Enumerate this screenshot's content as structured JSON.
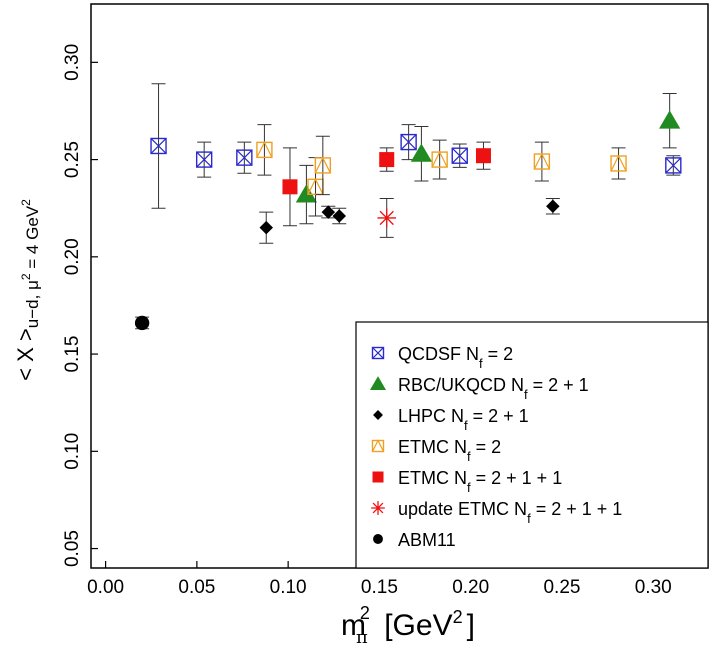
{
  "chart_data": {
    "type": "scatter",
    "title": "",
    "xlabel": "m_π² [GeV²]",
    "xlabel_parts": {
      "base": "m",
      "sub": "π",
      "sup": "2",
      "unit_open": "[GeV",
      "unit_sup": "2",
      "unit_close": "]"
    },
    "ylabel": "< X >u−d, μ² = 4 GeV²",
    "ylabel_parts": {
      "main": "< X >",
      "sub": "u−d, μ",
      "sup1": "2",
      "rest": " = 4 GeV",
      "sup2": "2"
    },
    "xlim": [
      -0.008,
      0.33
    ],
    "ylim": [
      0.04,
      0.33
    ],
    "xticks": [
      0.0,
      0.05,
      0.1,
      0.15,
      0.2,
      0.25,
      0.3
    ],
    "xtick_labels": [
      "0.00",
      "0.05",
      "0.10",
      "0.15",
      "0.20",
      "0.25",
      "0.30"
    ],
    "yticks": [
      0.05,
      0.1,
      0.15,
      0.2,
      0.25,
      0.3
    ],
    "ytick_labels": [
      "0.05",
      "0.10",
      "0.15",
      "0.20",
      "0.25",
      "0.30"
    ],
    "grid": false,
    "legend_position": "bottom-right",
    "series": [
      {
        "name": "QCDSF N_f = 2",
        "legend_parts": {
          "pre": "QCDSF N",
          "sub": "f",
          "post": " = 2"
        },
        "marker": "square-x",
        "color": "#2a2acc",
        "filled": false,
        "points": [
          {
            "x": 0.029,
            "y": 0.257,
            "err": 0.032
          },
          {
            "x": 0.054,
            "y": 0.25,
            "err": 0.009
          },
          {
            "x": 0.076,
            "y": 0.251,
            "err": 0.008
          },
          {
            "x": 0.166,
            "y": 0.259,
            "err": 0.009
          },
          {
            "x": 0.194,
            "y": 0.252,
            "err": 0.006
          },
          {
            "x": 0.311,
            "y": 0.247,
            "err": 0.005
          }
        ]
      },
      {
        "name": "RBC/UKQCD N_f = 2 + 1",
        "legend_parts": {
          "pre": "RBC/UKQCD N",
          "sub": "f",
          "post": " = 2 + 1"
        },
        "marker": "triangle",
        "color": "#218a21",
        "filled": true,
        "points": [
          {
            "x": 0.11,
            "y": 0.232,
            "err": 0.015
          },
          {
            "x": 0.173,
            "y": 0.253,
            "err": 0.014
          },
          {
            "x": 0.309,
            "y": 0.27,
            "err": 0.014
          }
        ]
      },
      {
        "name": "LHPC N_f = 2 + 1",
        "legend_parts": {
          "pre": "LHPC N",
          "sub": "f",
          "post": " = 2 + 1"
        },
        "marker": "diamond",
        "color": "#000000",
        "filled": true,
        "points": [
          {
            "x": 0.088,
            "y": 0.215,
            "err": 0.008
          },
          {
            "x": 0.122,
            "y": 0.223,
            "err": 0.003
          },
          {
            "x": 0.128,
            "y": 0.221,
            "err": 0.004
          },
          {
            "x": 0.245,
            "y": 0.226,
            "err": 0.004
          }
        ]
      },
      {
        "name": "ETMC N_f = 2",
        "legend_parts": {
          "pre": "ETMC N",
          "sub": "f",
          "post": " = 2"
        },
        "marker": "square-triangle",
        "color": "#f0a020",
        "filled": false,
        "points": [
          {
            "x": 0.087,
            "y": 0.255,
            "err": 0.013
          },
          {
            "x": 0.115,
            "y": 0.236,
            "err": 0.015
          },
          {
            "x": 0.119,
            "y": 0.247,
            "err": 0.015
          },
          {
            "x": 0.183,
            "y": 0.25,
            "err": 0.01
          },
          {
            "x": 0.239,
            "y": 0.249,
            "err": 0.01
          },
          {
            "x": 0.281,
            "y": 0.248,
            "err": 0.008
          }
        ]
      },
      {
        "name": "ETMC N_f = 2 + 1 + 1",
        "legend_parts": {
          "pre": "ETMC N",
          "sub": "f",
          "post": " = 2 + 1 + 1"
        },
        "marker": "square",
        "color": "#ee1111",
        "filled": true,
        "points": [
          {
            "x": 0.101,
            "y": 0.236,
            "err": 0.02
          },
          {
            "x": 0.154,
            "y": 0.25,
            "err": 0.006
          },
          {
            "x": 0.207,
            "y": 0.252,
            "err": 0.007
          }
        ]
      },
      {
        "name": "update ETMC N_f = 2 + 1 + 1",
        "legend_parts": {
          "pre": "update ETMC N",
          "sub": "f",
          "post": " = 2 + 1 + 1"
        },
        "marker": "asterisk",
        "color": "#ee1111",
        "filled": false,
        "points": [
          {
            "x": 0.154,
            "y": 0.22,
            "err": 0.01
          }
        ]
      },
      {
        "name": "ABM11",
        "legend_parts": {
          "pre": "ABM11",
          "sub": "",
          "post": ""
        },
        "marker": "circle",
        "color": "#000000",
        "filled": true,
        "points": [
          {
            "x": 0.02,
            "y": 0.166,
            "err": 0.003
          }
        ]
      }
    ]
  }
}
